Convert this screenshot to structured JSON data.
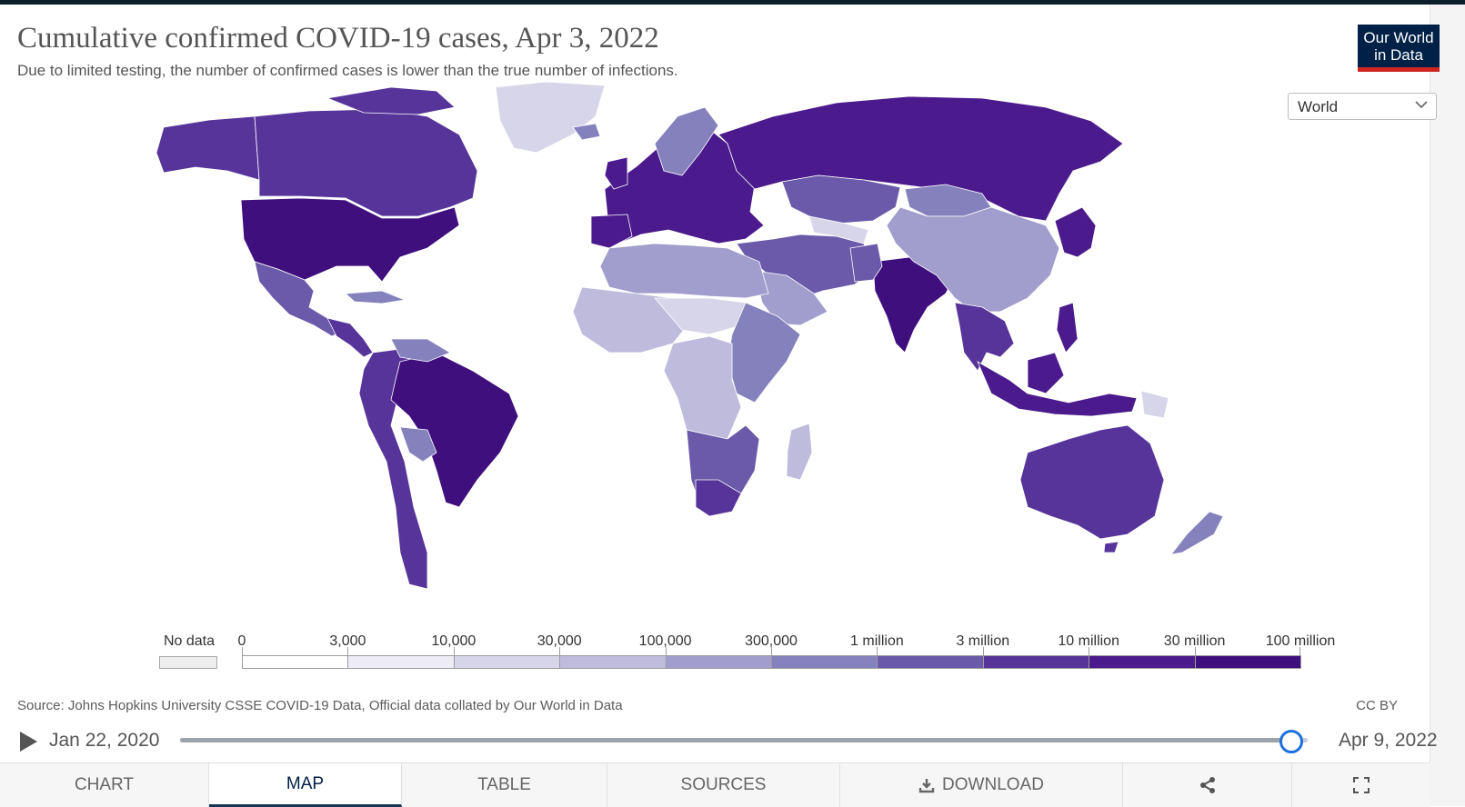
{
  "header": {
    "title": "Cumulative confirmed COVID-19 cases, Apr 3, 2022",
    "subtitle": "Due to limited testing, the number of confirmed cases is lower than the true number of infections."
  },
  "logo": {
    "line1": "Our World",
    "line2": "in Data"
  },
  "region_select": {
    "value": "World"
  },
  "legend": {
    "nodata_label": "No data",
    "bins": [
      {
        "label": "0",
        "color": "#ffffff"
      },
      {
        "label": "3,000",
        "color": "#eeedf6"
      },
      {
        "label": "10,000",
        "color": "#d7d5ea"
      },
      {
        "label": "30,000",
        "color": "#bebbdd"
      },
      {
        "label": "100,000",
        "color": "#a19dcc"
      },
      {
        "label": "300,000",
        "color": "#8581bd"
      },
      {
        "label": "1 million",
        "color": "#6a5aa9"
      },
      {
        "label": "3 million",
        "color": "#56349a"
      },
      {
        "label": "10 million",
        "color": "#4b1a8c"
      },
      {
        "label": "30 million",
        "color": "#3f0f7e"
      }
    ],
    "max_label": "100 million",
    "nodata_color": "#eeeeee"
  },
  "source": "Source: Johns Hopkins University CSSE COVID-19 Data, Official data collated by Our World in Data",
  "license": "CC BY",
  "timeline": {
    "start": "Jan 22, 2020",
    "end": "Apr 9, 2022",
    "position": 0.985
  },
  "tabs": [
    {
      "label": "CHART",
      "active": false
    },
    {
      "label": "MAP",
      "active": true
    },
    {
      "label": "TABLE",
      "active": false
    },
    {
      "label": "SOURCES",
      "active": false
    },
    {
      "label": "DOWNLOAD",
      "active": false
    }
  ],
  "map_colors": {
    "northamerica": "#56349a",
    "usa": "#3f0f7e",
    "mexico": "#6a5aa9",
    "greenland": "#d7d5ea",
    "southamerica": "#56349a",
    "brazil": "#3f0f7e",
    "europe": "#4b1a8c",
    "russia": "#4b1a8c",
    "africa": "#bebbdd",
    "southafrica": "#56349a",
    "northafrica": "#a19dcc",
    "middleeast": "#6a5aa9",
    "china": "#a19dcc",
    "india": "#3f0f7e",
    "seasia": "#56349a",
    "indonesia": "#4b1a8c",
    "australia": "#56349a",
    "japan": "#4b1a8c",
    "kazakhstan": "#6a5aa9",
    "mongolia": "#8581bd",
    "nz": "#8581bd",
    "madagascar": "#bebbdd",
    "iceland": "#8581bd",
    "centralafrica": "#d7d5ea",
    "eastafrica": "#8581bd"
  }
}
